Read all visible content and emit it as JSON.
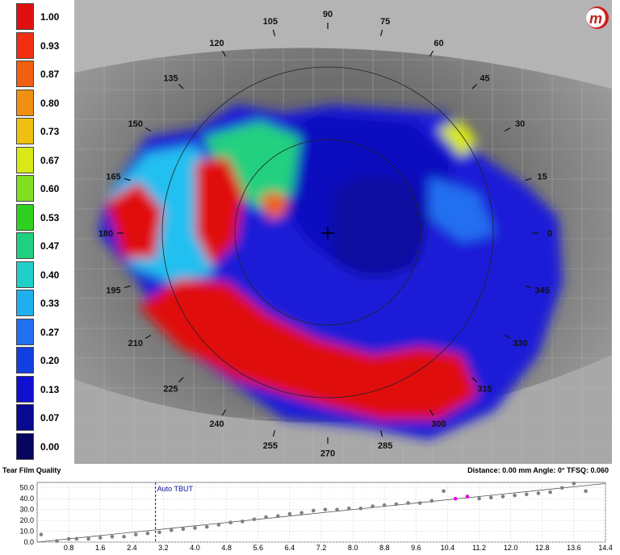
{
  "legend": {
    "values": [
      "1.00",
      "0.93",
      "0.87",
      "0.80",
      "0.73",
      "0.67",
      "0.60",
      "0.53",
      "0.47",
      "0.40",
      "0.33",
      "0.27",
      "0.20",
      "0.13",
      "0.07",
      "0.00"
    ],
    "colors": [
      "#e01010",
      "#f03010",
      "#f06010",
      "#f09010",
      "#f0c010",
      "#d8e818",
      "#80e020",
      "#30d020",
      "#20d080",
      "#20d0c8",
      "#20b0f0",
      "#2070f0",
      "#1040e0",
      "#1010d0",
      "#080890",
      "#060660"
    ]
  },
  "map": {
    "angle_labels": [
      "0",
      "15",
      "30",
      "45",
      "60",
      "75",
      "90",
      "105",
      "120",
      "135",
      "150",
      "165",
      "180",
      "195",
      "210",
      "225",
      "240",
      "255",
      "270",
      "285",
      "300",
      "315",
      "330",
      "345"
    ],
    "logo_letter": "m"
  },
  "tear_film": {
    "title": "Tear Film Quality",
    "status": "Distance: 0.00 mm Angle: 0° TFSQ:  0.060"
  },
  "graph": {
    "y_ticks": [
      "50.0",
      "40.0",
      "30.0",
      "20.0",
      "10.0",
      "0.0"
    ],
    "x_ticks": [
      "0.8",
      "1.6",
      "2.4",
      "3.2",
      "4.0",
      "4.8",
      "5.6",
      "6.4",
      "7.2",
      "8.0",
      "8.8",
      "9.6",
      "10.4",
      "11.2",
      "12.0",
      "12.8",
      "13.6",
      "14.4"
    ],
    "marker_label": "Auto TBUT",
    "marker_x": 3.0,
    "colors": {
      "point": "#808080",
      "highlight": "#e000e0",
      "marker": "#1010a0"
    }
  },
  "chart_data": {
    "type": "scatter",
    "xlabel": "",
    "ylabel": "",
    "xlim": [
      0,
      14.4
    ],
    "ylim": [
      0,
      55
    ],
    "x": [
      0.1,
      0.5,
      0.8,
      1.0,
      1.3,
      1.6,
      1.9,
      2.2,
      2.5,
      2.8,
      3.1,
      3.4,
      3.7,
      4.0,
      4.3,
      4.6,
      4.9,
      5.2,
      5.5,
      5.8,
      6.1,
      6.4,
      6.7,
      7.0,
      7.3,
      7.6,
      7.9,
      8.2,
      8.5,
      8.8,
      9.1,
      9.4,
      9.7,
      10.0,
      10.3,
      10.6,
      10.9,
      11.2,
      11.5,
      11.8,
      12.1,
      12.4,
      12.7,
      13.0,
      13.3,
      13.6,
      13.9
    ],
    "y": [
      7,
      1,
      3,
      3,
      3,
      4,
      5,
      5,
      7,
      8,
      9,
      11,
      12,
      13,
      14,
      16,
      18,
      19,
      21,
      23,
      24,
      26,
      27,
      29,
      30,
      30,
      31,
      31,
      33,
      34,
      35,
      36,
      36,
      38,
      47,
      40,
      42,
      40,
      41,
      42,
      43,
      44,
      45,
      46,
      50,
      54,
      47
    ],
    "highlight_x": [
      10.6,
      10.9
    ],
    "trend": {
      "x": [
        0,
        14.4
      ],
      "y": [
        0,
        54
      ]
    }
  }
}
